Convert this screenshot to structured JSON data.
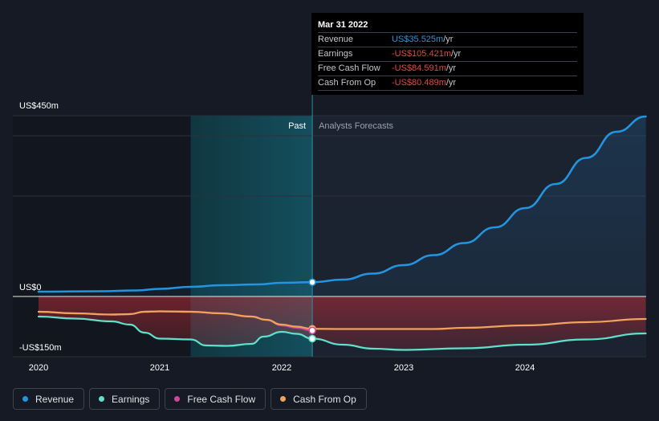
{
  "chart_data": {
    "type": "line",
    "title": "",
    "x_axis": {
      "ticks": [
        "2020",
        "2021",
        "2022",
        "2023",
        "2024"
      ],
      "range": [
        2020.0,
        2024.99
      ]
    },
    "y_axis": {
      "labels": [
        "US$450m",
        "US$0",
        "-US$150m"
      ],
      "ylim": [
        -150,
        450
      ],
      "unit": "US$m"
    },
    "divider": {
      "x": 2022.25,
      "past_label": "Past",
      "forecast_label": "Analysts Forecasts",
      "highlight_start": 2021.25
    },
    "series": [
      {
        "name": "Revenue",
        "color": "#2394df",
        "points": [
          [
            2020.0,
            12
          ],
          [
            2020.5,
            13
          ],
          [
            2020.8,
            15
          ],
          [
            2021.0,
            19
          ],
          [
            2021.25,
            24
          ],
          [
            2021.5,
            28
          ],
          [
            2021.8,
            30
          ],
          [
            2022.0,
            34
          ],
          [
            2022.25,
            35.5
          ],
          [
            2022.5,
            42
          ],
          [
            2022.75,
            57
          ],
          [
            2023.0,
            78
          ],
          [
            2023.25,
            103
          ],
          [
            2023.5,
            133
          ],
          [
            2023.75,
            172
          ],
          [
            2024.0,
            220
          ],
          [
            2024.25,
            280
          ],
          [
            2024.5,
            345
          ],
          [
            2024.75,
            410
          ],
          [
            2024.99,
            448
          ]
        ]
      },
      {
        "name": "Earnings",
        "color": "#5fe0cb",
        "points": [
          [
            2020.0,
            -50
          ],
          [
            2020.3,
            -55
          ],
          [
            2020.6,
            -62
          ],
          [
            2020.75,
            -70
          ],
          [
            2020.87,
            -90
          ],
          [
            2021.0,
            -105
          ],
          [
            2021.25,
            -107
          ],
          [
            2021.38,
            -122
          ],
          [
            2021.55,
            -123
          ],
          [
            2021.75,
            -118
          ],
          [
            2021.85,
            -100
          ],
          [
            2022.0,
            -88
          ],
          [
            2022.12,
            -93
          ],
          [
            2022.25,
            -105
          ],
          [
            2022.5,
            -120
          ],
          [
            2022.75,
            -130
          ],
          [
            2023.0,
            -133
          ],
          [
            2023.5,
            -129
          ],
          [
            2024.0,
            -120
          ],
          [
            2024.5,
            -107
          ],
          [
            2024.99,
            -92
          ]
        ]
      },
      {
        "name": "Free Cash Flow",
        "color": "#d0479a",
        "points": [
          [
            2020.0,
            -38
          ],
          [
            2020.3,
            -42
          ],
          [
            2020.6,
            -45
          ],
          [
            2020.75,
            -44
          ],
          [
            2020.87,
            -38
          ],
          [
            2021.0,
            -37
          ],
          [
            2021.25,
            -38
          ],
          [
            2021.5,
            -42
          ],
          [
            2021.75,
            -50
          ],
          [
            2021.87,
            -58
          ],
          [
            2022.0,
            -72
          ],
          [
            2022.12,
            -78
          ],
          [
            2022.25,
            -84.6
          ]
        ]
      },
      {
        "name": "Cash From Op",
        "color": "#f0a35a",
        "points": [
          [
            2020.0,
            -38
          ],
          [
            2020.3,
            -42
          ],
          [
            2020.6,
            -45
          ],
          [
            2020.75,
            -44
          ],
          [
            2020.87,
            -38
          ],
          [
            2021.0,
            -37
          ],
          [
            2021.25,
            -38
          ],
          [
            2021.5,
            -42
          ],
          [
            2021.75,
            -50
          ],
          [
            2021.87,
            -58
          ],
          [
            2022.0,
            -70
          ],
          [
            2022.12,
            -75
          ],
          [
            2022.25,
            -80.5
          ],
          [
            2022.5,
            -81
          ],
          [
            2022.75,
            -81
          ],
          [
            2023.0,
            -81
          ],
          [
            2023.25,
            -81
          ],
          [
            2023.5,
            -78
          ],
          [
            2024.0,
            -72
          ],
          [
            2024.5,
            -64
          ],
          [
            2024.99,
            -56
          ]
        ]
      }
    ],
    "tooltip": {
      "date": "Mar 31 2022",
      "rows": [
        {
          "label": "Revenue",
          "value": "US$35.525m",
          "unit": " /yr",
          "sign": "pos"
        },
        {
          "label": "Earnings",
          "value": "-US$105.421m",
          "unit": " /yr",
          "sign": "neg"
        },
        {
          "label": "Free Cash Flow",
          "value": "-US$84.591m",
          "unit": " /yr",
          "sign": "neg"
        },
        {
          "label": "Cash From Op",
          "value": "-US$80.489m",
          "unit": " /yr",
          "sign": "neg"
        }
      ]
    },
    "legend": [
      {
        "label": "Revenue",
        "color": "#2394df"
      },
      {
        "label": "Earnings",
        "color": "#5fe0cb"
      },
      {
        "label": "Free Cash Flow",
        "color": "#d0479a"
      },
      {
        "label": "Cash From Op",
        "color": "#f0a35a"
      }
    ]
  }
}
